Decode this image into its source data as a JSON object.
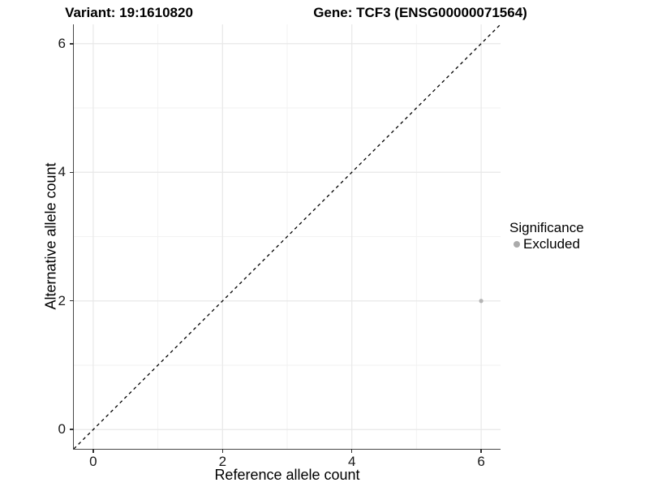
{
  "titles": {
    "variant": "Variant: 19:1610820",
    "gene": "Gene: TCF3 (ENSG00000071564)"
  },
  "axes": {
    "x_label": "Reference allele count",
    "y_label": "Alternative allele count"
  },
  "legend": {
    "title": "Significance",
    "items": [
      {
        "label": "Excluded",
        "color": "#ababab"
      }
    ]
  },
  "colors": {
    "major_grid": "#e8e8e8",
    "minor_grid": "#f2f2f2",
    "axis_line": "#474747",
    "reference_line": "#000000",
    "point": "#b4b4b4"
  },
  "chart_data": {
    "type": "scatter",
    "title": "Variant: 19:1610820   Gene: TCF3 (ENSG00000071564)",
    "xlabel": "Reference allele count",
    "ylabel": "Alternative allele count",
    "xlim": [
      -0.3,
      6.3
    ],
    "ylim": [
      -0.3,
      6.3
    ],
    "x_ticks": [
      0,
      2,
      4,
      6
    ],
    "y_ticks": [
      0,
      2,
      4,
      6
    ],
    "x_minor_ticks": [
      1,
      3,
      5
    ],
    "y_minor_ticks": [
      1,
      3,
      5
    ],
    "grid": true,
    "legend_position": "right",
    "series": [
      {
        "name": "Excluded",
        "color": "#b4b4b4",
        "points": [
          {
            "x": 6,
            "y": 2
          }
        ]
      }
    ],
    "reference_line": {
      "type": "identity",
      "slope": 1,
      "intercept": 0,
      "style": "dashed",
      "color": "#000000"
    }
  }
}
